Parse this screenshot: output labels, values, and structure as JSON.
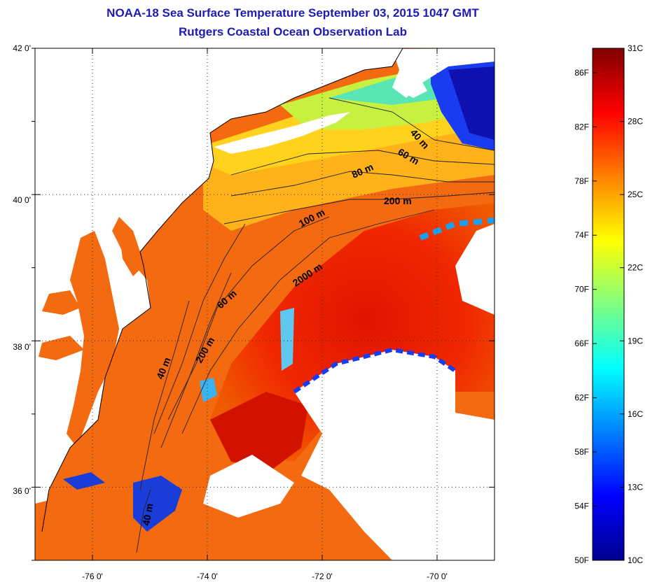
{
  "title": "NOAA-18 Sea Surface Temperature September 03, 2015 1047 GMT",
  "subtitle": "Rutgers Coastal Ocean Observation Lab",
  "axes": {
    "lat_labels": [
      "42 0'",
      "40 0'",
      "38 0'",
      "36 0'"
    ],
    "lon_labels": [
      "-76 0'",
      "-74 0'",
      "-72 0'",
      "-70 0'"
    ],
    "lat_range": [
      35.0,
      42.0
    ],
    "lon_range": [
      -77.0,
      -69.0
    ],
    "grid": "dotted"
  },
  "contours": [
    {
      "label": "40 m"
    },
    {
      "label": "60 m"
    },
    {
      "label": "80 m"
    },
    {
      "label": "200 m"
    },
    {
      "label": "100 m"
    },
    {
      "label": "2000 m"
    },
    {
      "label": "60 m"
    },
    {
      "label": "200 m"
    },
    {
      "label": "40 m"
    },
    {
      "label": "40 m"
    }
  ],
  "colorbar": {
    "f_labels": [
      "86F",
      "82F",
      "78F",
      "74F",
      "70F",
      "66F",
      "62F",
      "58F",
      "54F",
      "50F"
    ],
    "c_labels": [
      "31C",
      "28C",
      "25C",
      "22C",
      "19C",
      "16C",
      "13C",
      "10C"
    ],
    "range_c": [
      10,
      31
    ],
    "colors": [
      "#00008f",
      "#0000ff",
      "#0080ff",
      "#00ffff",
      "#80ff80",
      "#ffff00",
      "#ff8000",
      "#ff0000",
      "#800000"
    ]
  },
  "colors": {
    "land": "#ffffff",
    "cloud": "#ffffff",
    "title": "#1c1cb4",
    "coast": "#000000"
  }
}
